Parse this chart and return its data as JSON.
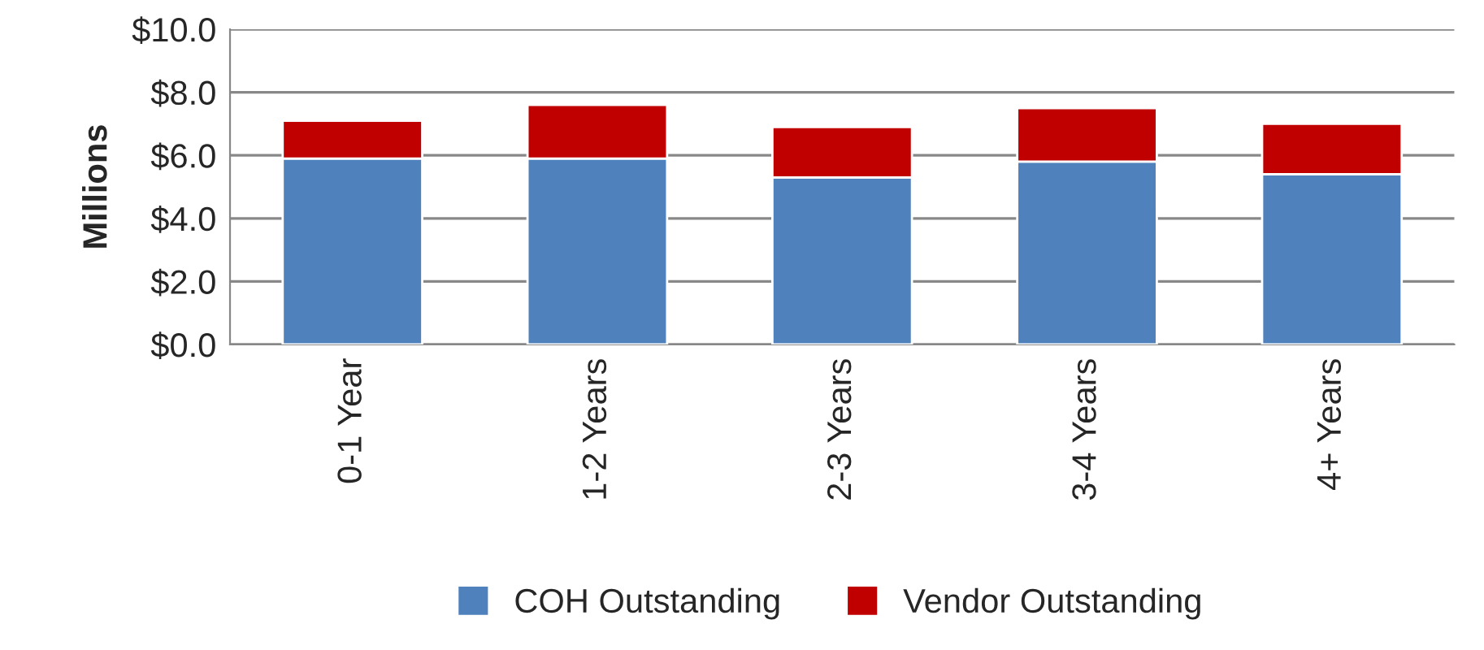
{
  "chart_data": {
    "type": "bar",
    "stacked": true,
    "ylabel": "Millions",
    "categories": [
      "0-1 Year",
      "1-2 Years",
      "2-3 Years",
      "3-4 Years",
      "4+ Years"
    ],
    "series": [
      {
        "name": "COH Outstanding",
        "color": "#4f81bd",
        "values": [
          5.9,
          5.9,
          5.3,
          5.8,
          5.4
        ]
      },
      {
        "name": "Vendor Outstanding",
        "color": "#c00000",
        "values": [
          1.2,
          1.7,
          1.6,
          1.7,
          1.6
        ]
      }
    ],
    "ylim": [
      0,
      10
    ],
    "yticks": [
      {
        "value": 0,
        "label": "$0.0"
      },
      {
        "value": 2,
        "label": "$2.0"
      },
      {
        "value": 4,
        "label": "$4.0"
      },
      {
        "value": 6,
        "label": "$6.0"
      },
      {
        "value": 8,
        "label": "$8.0"
      },
      {
        "value": 10,
        "label": "$10.0"
      }
    ],
    "grid": "y",
    "legend": "bottom"
  }
}
